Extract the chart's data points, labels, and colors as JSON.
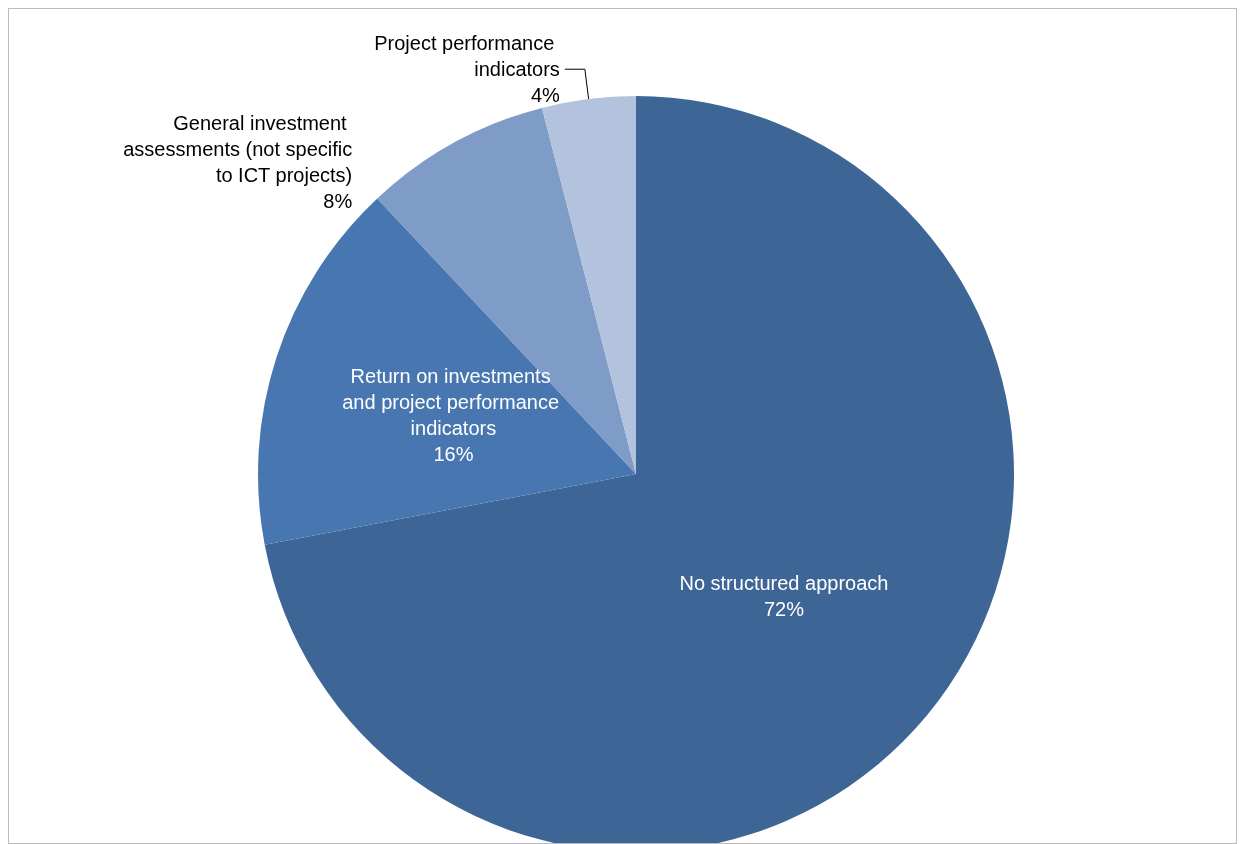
{
  "chart_data": {
    "type": "pie",
    "categories": [
      "No structured approach",
      "Return on investments and project performance indicators",
      "General investment assessments (not specific to ICT projects)",
      "Project performance indicators"
    ],
    "values": [
      72,
      16,
      8,
      4
    ],
    "colors": [
      "#3d6696",
      "#4876b0",
      "#7f9bc7",
      "#b3c2dd"
    ],
    "value_labels": [
      "72%",
      "16%",
      "8%",
      "4%"
    ],
    "legend": false
  }
}
